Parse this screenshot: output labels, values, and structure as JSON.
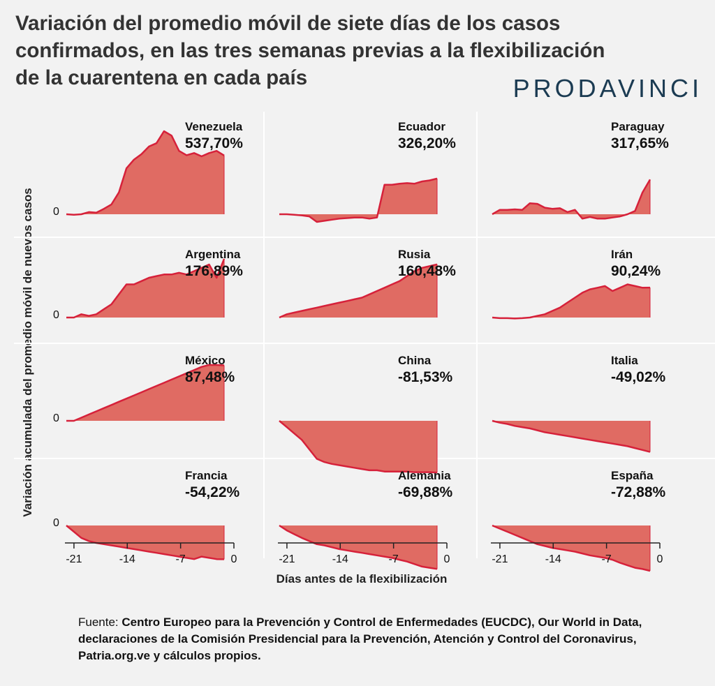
{
  "title_lines": [
    "Variación del promedio móvil de siete días de los casos",
    "confirmados, en las tres semanas previas a la flexibilización",
    "de la cuarentena en cada país"
  ],
  "brand": "PRODAVINCI",
  "source": {
    "label": "Fuente: ",
    "text": "Centro Europeo para la Prevención y Control de Enfermedades (EUCDC), Our World in Data, declaraciones de la Comisión Presidencial para la Prevención, Atención y Control del Coronavirus, Patria.org.ve y cálculos propios."
  },
  "colors": {
    "fill": "#e06b63",
    "line": "#d6213a",
    "grid": "#ffffff",
    "axis": "#222222"
  },
  "chart_data": {
    "type": "area",
    "ylabel": "Variación acumulada del promedio móvil de nuevos casos",
    "xlabel": "Días antes de la flexibilización",
    "x_ticks": [
      -21,
      -14,
      -7,
      0
    ],
    "x": [
      -22,
      -21,
      -20,
      -19,
      -18,
      -17,
      -16,
      -15,
      -14,
      -13,
      -12,
      -11,
      -10,
      -9,
      -8,
      -7,
      -6,
      -5,
      -4,
      -3,
      -2,
      -1
    ],
    "zero_label": "0",
    "y_scale_per_row": true,
    "series": [
      {
        "name": "Venezuela",
        "label": "537,70%",
        "values": [
          0,
          -5,
          0,
          20,
          15,
          50,
          90,
          200,
          420,
          500,
          550,
          620,
          650,
          760,
          720,
          580,
          540,
          560,
          530,
          560,
          580,
          537.7
        ]
      },
      {
        "name": "Ecuador",
        "label": "326,20%",
        "values": [
          0,
          0,
          -5,
          -10,
          -20,
          -70,
          -60,
          -50,
          -40,
          -35,
          -30,
          -30,
          -40,
          -30,
          270,
          270,
          280,
          285,
          280,
          300,
          310,
          326.2
        ]
      },
      {
        "name": "Paraguay",
        "label": "317,65%",
        "values": [
          0,
          40,
          40,
          45,
          40,
          100,
          95,
          60,
          50,
          55,
          20,
          40,
          -40,
          -25,
          -40,
          -40,
          -30,
          -20,
          0,
          30,
          200,
          317.65
        ]
      },
      {
        "name": "Argentina",
        "label": "176,89%",
        "values": [
          0,
          0,
          10,
          5,
          10,
          25,
          40,
          70,
          100,
          100,
          110,
          120,
          125,
          130,
          130,
          135,
          130,
          140,
          150,
          160,
          120,
          176.89
        ]
      },
      {
        "name": "Rusia",
        "label": "160,48%",
        "values": [
          0,
          10,
          15,
          20,
          25,
          30,
          35,
          40,
          45,
          50,
          55,
          60,
          70,
          80,
          90,
          100,
          110,
          125,
          140,
          150,
          155,
          160.48
        ]
      },
      {
        "name": "Irán",
        "label": "90,24%",
        "values": [
          0,
          -2,
          -2,
          -3,
          -2,
          0,
          5,
          10,
          20,
          30,
          45,
          60,
          75,
          85,
          90,
          95,
          80,
          90,
          100,
          95,
          90,
          90.24
        ]
      },
      {
        "name": "México",
        "label": "87,48%",
        "values": [
          0,
          0,
          5,
          10,
          15,
          20,
          25,
          30,
          35,
          40,
          45,
          50,
          55,
          60,
          65,
          70,
          75,
          80,
          85,
          88,
          88,
          87.48
        ]
      },
      {
        "name": "China",
        "label": "-81,53%",
        "values": [
          0,
          -10,
          -20,
          -30,
          -45,
          -60,
          -65,
          -68,
          -70,
          -72,
          -74,
          -76,
          -78,
          -78,
          -80,
          -80,
          -80,
          -80,
          -81,
          -81,
          -81,
          -81.53
        ]
      },
      {
        "name": "Italia",
        "label": "-49,02%",
        "values": [
          0,
          -3,
          -5,
          -8,
          -10,
          -12,
          -15,
          -18,
          -20,
          -22,
          -24,
          -26,
          -28,
          -30,
          -32,
          -34,
          -36,
          -38,
          -40,
          -43,
          -46,
          -49.02
        ]
      },
      {
        "name": "Francia",
        "label": "-54,22%",
        "values": [
          0,
          -10,
          -20,
          -25,
          -28,
          -30,
          -32,
          -34,
          -36,
          -38,
          -40,
          -42,
          -44,
          -46,
          -48,
          -50,
          -52,
          -54,
          -50,
          -52,
          -54,
          -54.22
        ]
      },
      {
        "name": "Alemania",
        "label": "-69,88%",
        "values": [
          0,
          -8,
          -14,
          -20,
          -25,
          -30,
          -32,
          -35,
          -38,
          -40,
          -42,
          -44,
          -46,
          -48,
          -50,
          -52,
          -55,
          -58,
          -62,
          -66,
          -68,
          -69.88
        ]
      },
      {
        "name": "España",
        "label": "-72,88%",
        "values": [
          0,
          -5,
          -10,
          -15,
          -20,
          -25,
          -30,
          -33,
          -36,
          -38,
          -40,
          -42,
          -45,
          -48,
          -50,
          -52,
          -55,
          -60,
          -64,
          -68,
          -70,
          -72.88
        ]
      }
    ]
  }
}
